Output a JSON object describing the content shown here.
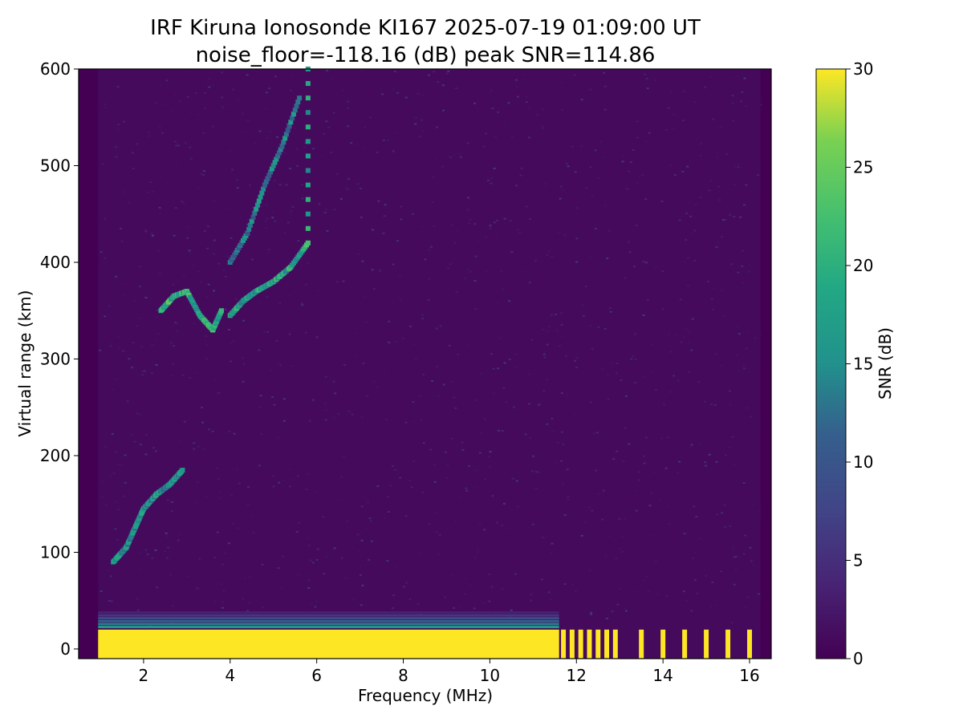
{
  "chart_data": {
    "type": "heatmap",
    "title": "IRF Kiruna Ionosonde KI167 2025-07-19 01:09:00  UT",
    "subtitle": "noise_floor=-118.16 (dB) peak SNR=114.86",
    "xlabel": "Frequency (MHz)",
    "ylabel": "Virtual range (km)",
    "xlim": [
      0.5,
      16.5
    ],
    "ylim": [
      -10,
      600
    ],
    "xticks": [
      "2",
      "4",
      "6",
      "8",
      "10",
      "12",
      "14",
      "16"
    ],
    "yticks": [
      "0",
      "100",
      "200",
      "300",
      "400",
      "500",
      "600"
    ],
    "colorbar": {
      "label": "SNR (dB)",
      "range": [
        0,
        30
      ],
      "ticks": [
        "0",
        "5",
        "10",
        "15",
        "20",
        "25",
        "30"
      ],
      "colormap": "viridis"
    },
    "frequency_range_mhz": [
      0.95,
      16.25
    ],
    "features": [
      {
        "name": "ground-clutter",
        "freq_mhz": [
          0.95,
          11.6
        ],
        "range_km": [
          -10,
          20
        ],
        "snr_db": 30
      },
      {
        "name": "ground-clutter-discrete",
        "freqs_mhz": [
          11.7,
          11.9,
          12.1,
          12.3,
          12.5,
          12.7,
          12.9,
          13.5,
          14.0,
          14.5,
          15.0,
          15.5,
          16.0
        ],
        "range_km": [
          -10,
          20
        ],
        "snr_db": 30
      },
      {
        "name": "E-region-trace",
        "points": [
          [
            1.3,
            90
          ],
          [
            1.6,
            105
          ],
          [
            1.8,
            125
          ],
          [
            2.0,
            145
          ],
          [
            2.3,
            160
          ],
          [
            2.6,
            170
          ],
          [
            2.9,
            185
          ]
        ],
        "snr_db": 20
      },
      {
        "name": "F-o-trace",
        "points": [
          [
            2.4,
            350
          ],
          [
            2.7,
            365
          ],
          [
            3.0,
            370
          ],
          [
            3.3,
            345
          ],
          [
            3.6,
            330
          ],
          [
            3.8,
            350
          ]
        ],
        "snr_db": 25
      },
      {
        "name": "F-x-trace",
        "points": [
          [
            4.0,
            345
          ],
          [
            4.3,
            360
          ],
          [
            4.6,
            370
          ],
          [
            5.0,
            380
          ],
          [
            5.4,
            395
          ],
          [
            5.8,
            420
          ],
          [
            5.8,
            600
          ]
        ],
        "snr_db": 24
      },
      {
        "name": "F-multihop",
        "points": [
          [
            4.0,
            400
          ],
          [
            4.4,
            430
          ],
          [
            4.8,
            480
          ],
          [
            5.2,
            520
          ],
          [
            5.6,
            570
          ]
        ],
        "snr_db": 18
      }
    ],
    "noise_floor_snr_db": 1
  }
}
